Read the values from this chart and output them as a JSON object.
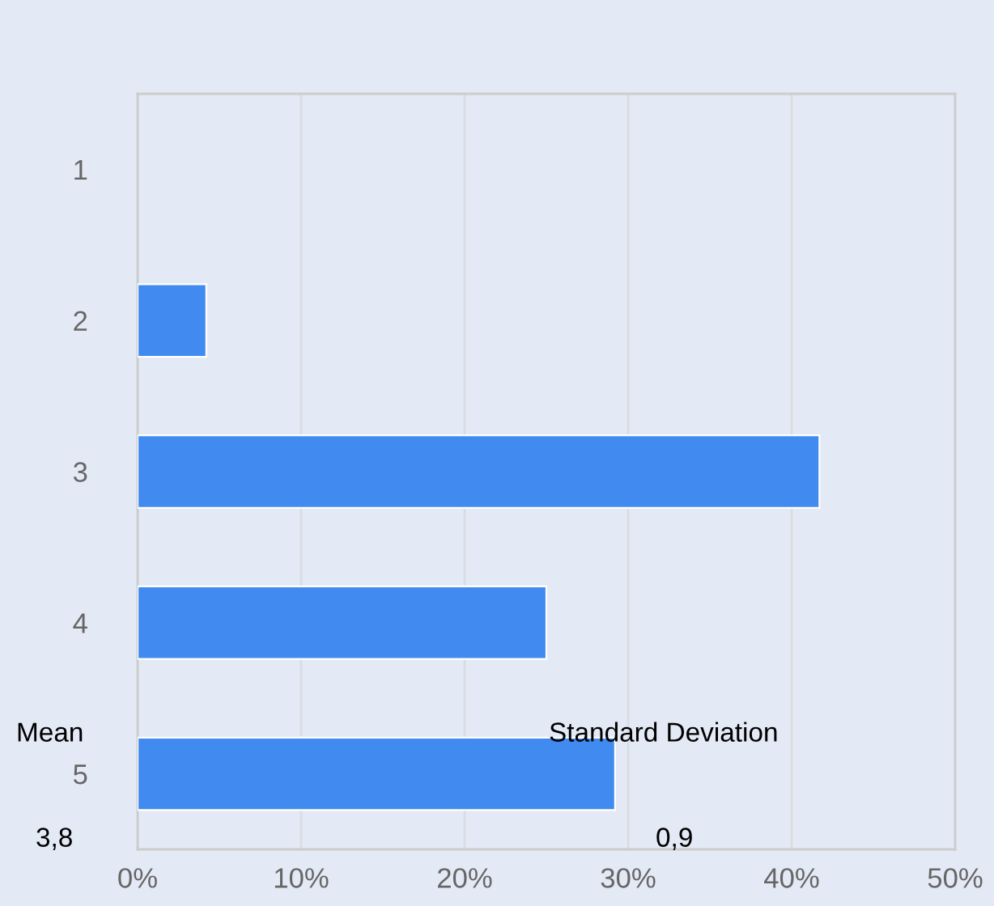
{
  "chart_data": {
    "type": "bar",
    "orientation": "horizontal",
    "categories": [
      "1",
      "2",
      "3",
      "4",
      "5"
    ],
    "series": [
      {
        "color": "#418bf0",
        "values": [
          0,
          4.2,
          41.7,
          25,
          29.2
        ]
      }
    ],
    "xlim": [
      0,
      50
    ],
    "xticks": [
      {
        "value": 0,
        "label": "0%"
      },
      {
        "value": 10,
        "label": "10%"
      },
      {
        "value": 20,
        "label": "20%"
      },
      {
        "value": 30,
        "label": "30%"
      },
      {
        "value": 40,
        "label": "40%"
      },
      {
        "value": 50,
        "label": "50%"
      }
    ],
    "grid": "x",
    "annotations": [
      "Mean",
      "3,8",
      "Standard Deviation",
      "0,9"
    ]
  }
}
